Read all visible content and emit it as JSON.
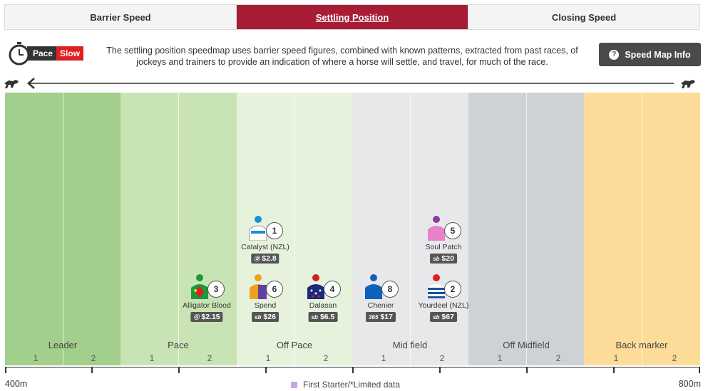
{
  "tabs": [
    {
      "label": "Barrier Speed"
    },
    {
      "label": "Settling Position"
    },
    {
      "label": "Closing Speed"
    }
  ],
  "pace": {
    "label": "Pace",
    "value": "Slow"
  },
  "description": "The settling position speedmap uses barrier speed figures, combined with known patterns, extracted from past races, of jockeys and trainers to provide an indication of where a horse will settle, and travel, for much of the race.",
  "info_button": {
    "label": "Speed Map Info",
    "icon": "question-icon"
  },
  "zones": [
    {
      "name": "Leader",
      "sub": [
        "1",
        "2"
      ],
      "color": "#a3cf8c"
    },
    {
      "name": "Pace",
      "sub": [
        "1",
        "2"
      ],
      "color": "#c9e4b4"
    },
    {
      "name": "Off Pace",
      "sub": [
        "1",
        "2"
      ],
      "color": "#e6f2dc"
    },
    {
      "name": "Mid field",
      "sub": [
        "1",
        "2"
      ],
      "color": "#e7e8ea"
    },
    {
      "name": "Off Midfield",
      "sub": [
        "1",
        "2"
      ],
      "color": "#cfd2d5"
    },
    {
      "name": "Back marker",
      "sub": [
        "1",
        "2"
      ],
      "color": "#fddc99"
    }
  ],
  "horses": [
    {
      "number": "1",
      "name": "Catalyst (NZL)",
      "odds": "$2.8",
      "bookmaker": "bet-easy",
      "silk": [
        "#ffffff",
        "#1a8fd8"
      ]
    },
    {
      "number": "5",
      "name": "Soul Patch",
      "odds": "$20",
      "bookmaker": "sb",
      "silk": [
        "#e882c8",
        "#8a3aa0"
      ]
    },
    {
      "number": "3",
      "name": "Alligator Blood",
      "odds": "$2.15",
      "bookmaker": "bet-easy",
      "silk": [
        "#1a9a3a",
        "#e02020"
      ]
    },
    {
      "number": "6",
      "name": "Spend",
      "odds": "$26",
      "bookmaker": "sb",
      "silk": [
        "#f0a020",
        "#6040a0"
      ]
    },
    {
      "number": "4",
      "name": "Dalasan",
      "odds": "$6.5",
      "bookmaker": "sb",
      "silk": [
        "#1a2a7a",
        "#d02020"
      ]
    },
    {
      "number": "8",
      "name": "Chenier",
      "odds": "$17",
      "bookmaker": "365",
      "silk": [
        "#1060c0",
        "#1060c0"
      ]
    },
    {
      "number": "2",
      "name": "Yourdeel (NZL)",
      "odds": "$67",
      "bookmaker": "sb",
      "silk": [
        "#ffffff",
        "#1a50a0"
      ]
    }
  ],
  "axis": {
    "start": "400m",
    "end": "800m"
  },
  "legend": {
    "label": "First Starter/*Limited data",
    "color": "#c9a6e0"
  }
}
